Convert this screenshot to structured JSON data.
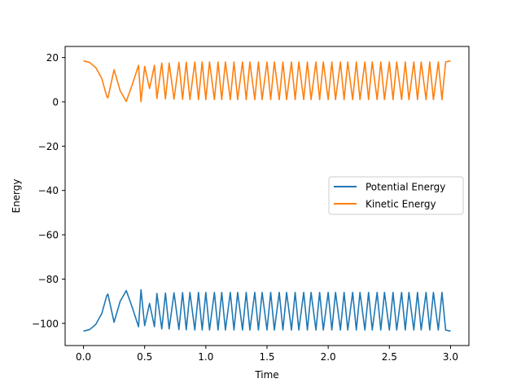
{
  "chart_data": {
    "type": "line",
    "title": "",
    "xlabel": "Time",
    "ylabel": "Energy",
    "xlim": [
      -0.15,
      3.15
    ],
    "ylim": [
      -110,
      25
    ],
    "xticks": [
      0.0,
      0.5,
      1.0,
      1.5,
      2.0,
      2.5,
      3.0
    ],
    "xtick_labels": [
      "0.0",
      "0.5",
      "1.0",
      "1.5",
      "2.0",
      "2.5",
      "3.0"
    ],
    "yticks": [
      20,
      0,
      -20,
      -40,
      -60,
      -80,
      -100
    ],
    "ytick_labels": [
      "20",
      "0",
      "−20",
      "−40",
      "−60",
      "−80",
      "−100"
    ],
    "grid": false,
    "legend_position": "center-right",
    "series": [
      {
        "name": "Potential Energy",
        "color": "#1f77b4",
        "x": [
          0.0,
          0.05,
          0.1,
          0.15,
          0.19,
          0.2,
          0.25,
          0.3,
          0.35,
          0.4,
          0.45,
          0.47,
          0.5,
          0.54,
          0.58,
          0.6,
          0.64,
          0.67,
          0.7,
          0.74,
          0.78,
          0.81,
          0.84,
          0.87,
          0.91,
          0.94,
          0.97,
          1.0,
          1.03,
          1.07,
          1.1,
          1.13,
          1.16,
          1.2,
          1.23,
          1.26,
          1.3,
          1.33,
          1.36,
          1.4,
          1.43,
          1.46,
          1.5,
          1.53,
          1.56,
          1.6,
          1.63,
          1.66,
          1.7,
          1.73,
          1.76,
          1.8,
          1.83,
          1.86,
          1.9,
          1.93,
          1.96,
          2.0,
          2.03,
          2.06,
          2.1,
          2.13,
          2.16,
          2.2,
          2.23,
          2.26,
          2.3,
          2.33,
          2.36,
          2.4,
          2.43,
          2.46,
          2.5,
          2.53,
          2.56,
          2.6,
          2.63,
          2.66,
          2.7,
          2.73,
          2.76,
          2.8,
          2.83,
          2.86,
          2.9,
          2.93,
          2.96,
          3.0
        ],
        "y": [
          -103.5,
          -102.8,
          -100.5,
          -95.5,
          -87.5,
          -86.8,
          -99.5,
          -90.0,
          -85.2,
          -93.0,
          -101.5,
          -84.8,
          -101.0,
          -91.0,
          -101.5,
          -86.5,
          -102.5,
          -86.3,
          -102.5,
          -86.2,
          -102.8,
          -86.1,
          -102.9,
          -86.0,
          -103.0,
          -86.0,
          -103.0,
          -86.0,
          -103.0,
          -86.0,
          -103.0,
          -86.0,
          -103.0,
          -86.0,
          -103.0,
          -86.0,
          -103.0,
          -86.0,
          -103.0,
          -86.0,
          -103.0,
          -86.0,
          -103.0,
          -86.0,
          -103.0,
          -86.0,
          -103.0,
          -86.0,
          -103.0,
          -86.0,
          -103.0,
          -86.0,
          -103.0,
          -86.0,
          -103.0,
          -86.0,
          -103.0,
          -86.0,
          -103.0,
          -86.0,
          -103.0,
          -86.0,
          -103.0,
          -86.0,
          -103.0,
          -86.0,
          -103.0,
          -86.0,
          -103.0,
          -86.0,
          -103.0,
          -86.0,
          -103.0,
          -86.0,
          -103.0,
          -86.0,
          -103.0,
          -86.0,
          -103.0,
          -86.0,
          -103.0,
          -86.0,
          -103.0,
          -86.0,
          -103.0,
          -86.0,
          -103.0,
          -103.5
        ]
      },
      {
        "name": "Kinetic Energy",
        "color": "#ff7f0e",
        "x": [
          0.0,
          0.05,
          0.1,
          0.15,
          0.19,
          0.2,
          0.25,
          0.3,
          0.35,
          0.4,
          0.45,
          0.47,
          0.5,
          0.54,
          0.58,
          0.6,
          0.64,
          0.67,
          0.7,
          0.74,
          0.78,
          0.81,
          0.84,
          0.87,
          0.91,
          0.94,
          0.97,
          1.0,
          1.03,
          1.07,
          1.1,
          1.13,
          1.16,
          1.2,
          1.23,
          1.26,
          1.3,
          1.33,
          1.36,
          1.4,
          1.43,
          1.46,
          1.5,
          1.53,
          1.56,
          1.6,
          1.63,
          1.66,
          1.7,
          1.73,
          1.76,
          1.8,
          1.83,
          1.86,
          1.9,
          1.93,
          1.96,
          2.0,
          2.03,
          2.06,
          2.1,
          2.13,
          2.16,
          2.2,
          2.23,
          2.26,
          2.3,
          2.33,
          2.36,
          2.4,
          2.43,
          2.46,
          2.5,
          2.53,
          2.56,
          2.6,
          2.63,
          2.66,
          2.7,
          2.73,
          2.76,
          2.8,
          2.83,
          2.86,
          2.9,
          2.93,
          2.96,
          3.0
        ],
        "y": [
          18.5,
          17.8,
          15.5,
          10.5,
          2.5,
          1.8,
          14.5,
          5.0,
          0.2,
          8.0,
          16.5,
          0.0,
          16.0,
          6.0,
          16.5,
          1.5,
          17.5,
          1.3,
          17.5,
          1.2,
          17.8,
          1.1,
          17.9,
          1.0,
          18.0,
          1.0,
          18.0,
          1.0,
          18.0,
          1.0,
          18.0,
          1.0,
          18.0,
          1.0,
          18.0,
          1.0,
          18.0,
          1.0,
          18.0,
          1.0,
          18.0,
          1.0,
          18.0,
          1.0,
          18.0,
          1.0,
          18.0,
          1.0,
          18.0,
          1.0,
          18.0,
          1.0,
          18.0,
          1.0,
          18.0,
          1.0,
          18.0,
          1.0,
          18.0,
          1.0,
          18.0,
          1.0,
          18.0,
          1.0,
          18.0,
          1.0,
          18.0,
          1.0,
          18.0,
          1.0,
          18.0,
          1.0,
          18.0,
          1.0,
          18.0,
          1.0,
          18.0,
          1.0,
          18.0,
          1.0,
          18.0,
          1.0,
          18.0,
          1.0,
          18.0,
          1.0,
          18.0,
          18.5
        ]
      }
    ]
  }
}
